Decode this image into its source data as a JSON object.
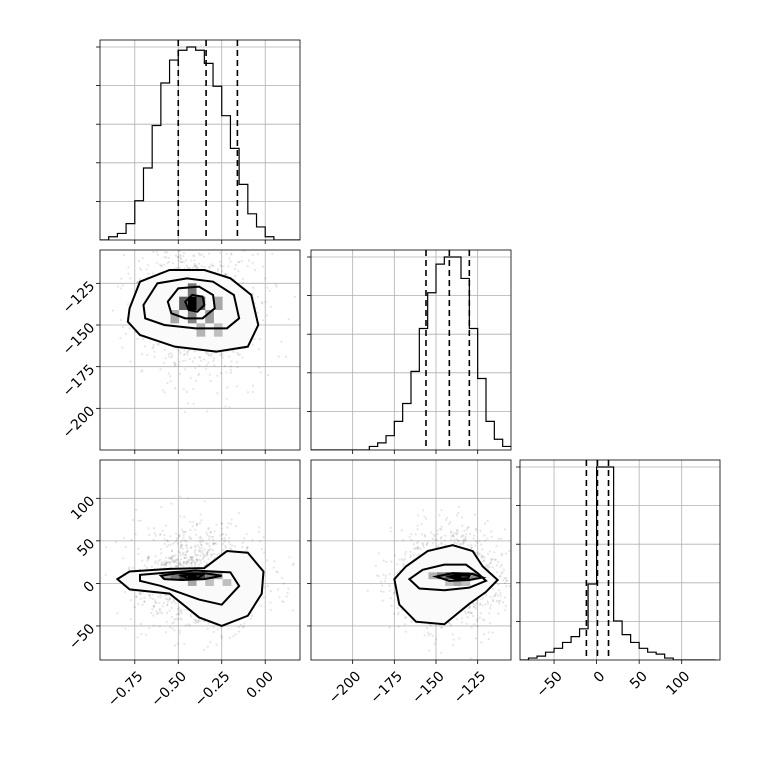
{
  "chart_data": {
    "type": "corner",
    "parameters": [
      {
        "lim": [
          -0.95,
          0.2
        ],
        "ticks": [
          -0.75,
          -0.5,
          -0.25,
          0.0
        ],
        "tick_labels": [
          "−0.75",
          "−0.50",
          "−0.25",
          "0.00"
        ],
        "quantiles": [
          -0.5,
          -0.34,
          -0.16
        ]
      },
      {
        "lim": [
          -225,
          -105
        ],
        "ticks": [
          -200,
          -175,
          -150,
          -125
        ],
        "tick_labels": [
          "−200",
          "−175",
          "−150",
          "−125"
        ],
        "quantiles": [
          -156,
          -142,
          -130
        ]
      },
      {
        "lim": [
          -90,
          145
        ],
        "ticks": [
          -50,
          0,
          50,
          100
        ],
        "tick_labels": [
          "−50",
          "0",
          "50",
          "100"
        ],
        "quantiles": [
          -12,
          1,
          14
        ]
      }
    ],
    "histograms": [
      {
        "edges": [
          -0.95,
          -0.9,
          -0.85,
          -0.8,
          -0.75,
          -0.7,
          -0.65,
          -0.6,
          -0.55,
          -0.5,
          -0.45,
          -0.4,
          -0.35,
          -0.3,
          -0.25,
          -0.2,
          -0.15,
          -0.1,
          -0.05,
          0.0,
          0.05,
          0.1,
          0.15,
          0.2
        ],
        "counts": [
          0,
          1,
          2,
          5,
          12,
          22,
          35,
          48,
          55,
          58,
          59,
          58,
          54,
          47,
          38,
          28,
          17,
          8,
          4,
          1,
          0,
          0,
          0
        ]
      },
      {
        "edges": [
          -225,
          -220,
          -215,
          -210,
          -205,
          -200,
          -195,
          -190,
          -185,
          -180,
          -175,
          -170,
          -165,
          -160,
          -155,
          -150,
          -145,
          -140,
          -135,
          -130,
          -125,
          -120,
          -115,
          -110,
          -105
        ],
        "counts": [
          0,
          0,
          0,
          0,
          0,
          0,
          0,
          1,
          2,
          4,
          8,
          13,
          22,
          34,
          44,
          52,
          54,
          54,
          48,
          34,
          20,
          8,
          3,
          1
        ]
      },
      {
        "edges": [
          -90,
          -80,
          -70,
          -60,
          -50,
          -40,
          -30,
          -20,
          -10,
          0,
          10,
          20,
          30,
          40,
          50,
          60,
          70,
          80,
          90,
          100,
          110,
          120,
          130,
          140
        ],
        "counts": [
          0,
          1,
          2,
          4,
          6,
          9,
          12,
          16,
          39,
          99,
          99,
          20,
          13,
          9,
          6,
          4,
          3,
          1,
          0,
          0,
          0,
          0,
          0
        ]
      }
    ],
    "scatter_blobs": [
      {
        "i": 1,
        "j": 0,
        "cx": -0.39,
        "cy": -139,
        "sx": 0.17,
        "sy": 20
      },
      {
        "i": 2,
        "j": 0,
        "cx": -0.38,
        "cy": 6,
        "sx": 0.18,
        "sy": 30
      },
      {
        "i": 2,
        "j": 1,
        "cx": -142,
        "cy": 6,
        "sx": 16,
        "sy": 30
      }
    ],
    "contours": [
      {
        "i": 1,
        "j": 0,
        "levels": [
          [
            [
              -0.78,
              -140
            ],
            [
              -0.72,
              -124
            ],
            [
              -0.55,
              -117
            ],
            [
              -0.35,
              -117
            ],
            [
              -0.2,
              -122
            ],
            [
              -0.08,
              -132
            ],
            [
              -0.04,
              -150
            ],
            [
              -0.1,
              -163
            ],
            [
              -0.28,
              -166
            ],
            [
              -0.52,
              -163
            ],
            [
              -0.72,
              -156
            ],
            [
              -0.79,
              -148
            ]
          ],
          [
            [
              -0.7,
              -138
            ],
            [
              -0.62,
              -125
            ],
            [
              -0.45,
              -122
            ],
            [
              -0.3,
              -124
            ],
            [
              -0.18,
              -132
            ],
            [
              -0.15,
              -146
            ],
            [
              -0.22,
              -152
            ],
            [
              -0.4,
              -152
            ],
            [
              -0.58,
              -150
            ],
            [
              -0.69,
              -146
            ]
          ],
          [
            [
              -0.56,
              -136
            ],
            [
              -0.5,
              -128
            ],
            [
              -0.38,
              -127
            ],
            [
              -0.3,
              -132
            ],
            [
              -0.29,
              -140
            ],
            [
              -0.36,
              -146
            ],
            [
              -0.46,
              -146
            ],
            [
              -0.54,
              -143
            ]
          ],
          [
            [
              -0.46,
              -136
            ],
            [
              -0.42,
              -132
            ],
            [
              -0.36,
              -133
            ],
            [
              -0.35,
              -138
            ],
            [
              -0.39,
              -142
            ],
            [
              -0.44,
              -141
            ]
          ]
        ]
      },
      {
        "i": 2,
        "j": 0,
        "levels": [
          [
            [
              -0.85,
              5
            ],
            [
              -0.78,
              14
            ],
            [
              -0.55,
              17
            ],
            [
              -0.35,
              18
            ],
            [
              -0.22,
              38
            ],
            [
              -0.1,
              36
            ],
            [
              -0.01,
              14
            ],
            [
              -0.02,
              -12
            ],
            [
              -0.1,
              -38
            ],
            [
              -0.25,
              -50
            ],
            [
              -0.38,
              -40
            ],
            [
              -0.55,
              -12
            ],
            [
              -0.78,
              -7
            ]
          ],
          [
            [
              -0.72,
              10
            ],
            [
              -0.55,
              13
            ],
            [
              -0.4,
              15
            ],
            [
              -0.2,
              13
            ],
            [
              -0.15,
              -3
            ],
            [
              -0.25,
              -25
            ],
            [
              -0.38,
              -19
            ],
            [
              -0.6,
              -3
            ],
            [
              -0.72,
              3
            ]
          ],
          [
            [
              -0.6,
              9
            ],
            [
              -0.5,
              12
            ],
            [
              -0.35,
              12
            ],
            [
              -0.25,
              9
            ],
            [
              -0.35,
              5
            ],
            [
              -0.48,
              4
            ],
            [
              -0.58,
              5
            ]
          ],
          [
            [
              -0.48,
              9
            ],
            [
              -0.42,
              11
            ],
            [
              -0.36,
              10
            ],
            [
              -0.38,
              7
            ],
            [
              -0.44,
              6
            ]
          ]
        ]
      },
      {
        "i": 2,
        "j": 1,
        "levels": [
          [
            [
              -175,
              5
            ],
            [
              -168,
              20
            ],
            [
              -155,
              38
            ],
            [
              -140,
              45
            ],
            [
              -128,
              38
            ],
            [
              -122,
              20
            ],
            [
              -113,
              4
            ],
            [
              -120,
              -10
            ],
            [
              -130,
              -24
            ],
            [
              -145,
              -48
            ],
            [
              -162,
              -45
            ],
            [
              -172,
              -25
            ]
          ],
          [
            [
              -166,
              5
            ],
            [
              -158,
              16
            ],
            [
              -145,
              22
            ],
            [
              -132,
              22
            ],
            [
              -125,
              12
            ],
            [
              -120,
              3
            ],
            [
              -130,
              -5
            ],
            [
              -145,
              -8
            ],
            [
              -160,
              -6
            ]
          ],
          [
            [
              -150,
              8
            ],
            [
              -140,
              12
            ],
            [
              -128,
              11
            ],
            [
              -122,
              7
            ],
            [
              -130,
              4
            ],
            [
              -142,
              3
            ]
          ],
          [
            [
              -142,
              8
            ],
            [
              -137,
              10
            ],
            [
              -130,
              9
            ],
            [
              -131,
              6
            ],
            [
              -138,
              5
            ]
          ]
        ]
      }
    ],
    "density_cells": [
      {
        "i": 1,
        "j": 0,
        "cells": [
          [
            -0.42,
            -137,
            0.05,
            8,
            1.0
          ],
          [
            -0.47,
            -137,
            0.05,
            8,
            0.6
          ],
          [
            -0.37,
            -137,
            0.05,
            8,
            0.6
          ],
          [
            -0.42,
            -145,
            0.05,
            8,
            0.45
          ],
          [
            -0.42,
            -129,
            0.05,
            8,
            0.5
          ],
          [
            -0.32,
            -145,
            0.05,
            8,
            0.35
          ],
          [
            -0.52,
            -145,
            0.05,
            8,
            0.3
          ],
          [
            -0.27,
            -137,
            0.05,
            8,
            0.3
          ],
          [
            -0.27,
            -153,
            0.05,
            8,
            0.2
          ],
          [
            -0.37,
            -153,
            0.05,
            8,
            0.25
          ]
        ]
      },
      {
        "i": 2,
        "j": 0,
        "cells": [
          [
            -0.42,
            9,
            0.05,
            8,
            1.0
          ],
          [
            -0.47,
            9,
            0.05,
            8,
            0.75
          ],
          [
            -0.37,
            9,
            0.05,
            8,
            0.7
          ],
          [
            -0.52,
            9,
            0.05,
            8,
            0.5
          ],
          [
            -0.32,
            9,
            0.05,
            8,
            0.45
          ],
          [
            -0.27,
            9,
            0.05,
            8,
            0.3
          ],
          [
            -0.57,
            9,
            0.05,
            8,
            0.3
          ],
          [
            -0.42,
            1,
            0.05,
            8,
            0.3
          ],
          [
            -0.22,
            1,
            0.05,
            8,
            0.2
          ],
          [
            -0.32,
            1,
            0.05,
            8,
            0.2
          ]
        ]
      },
      {
        "i": 2,
        "j": 1,
        "cells": [
          [
            -137,
            9,
            5,
            8,
            1.0
          ],
          [
            -142,
            9,
            5,
            8,
            0.7
          ],
          [
            -132,
            9,
            5,
            8,
            0.7
          ],
          [
            -147,
            9,
            5,
            8,
            0.45
          ],
          [
            -127,
            9,
            5,
            8,
            0.4
          ],
          [
            -152,
            9,
            5,
            8,
            0.25
          ],
          [
            -137,
            1,
            5,
            8,
            0.3
          ],
          [
            -142,
            1,
            5,
            8,
            0.2
          ],
          [
            -132,
            1,
            5,
            8,
            0.2
          ]
        ]
      }
    ]
  }
}
